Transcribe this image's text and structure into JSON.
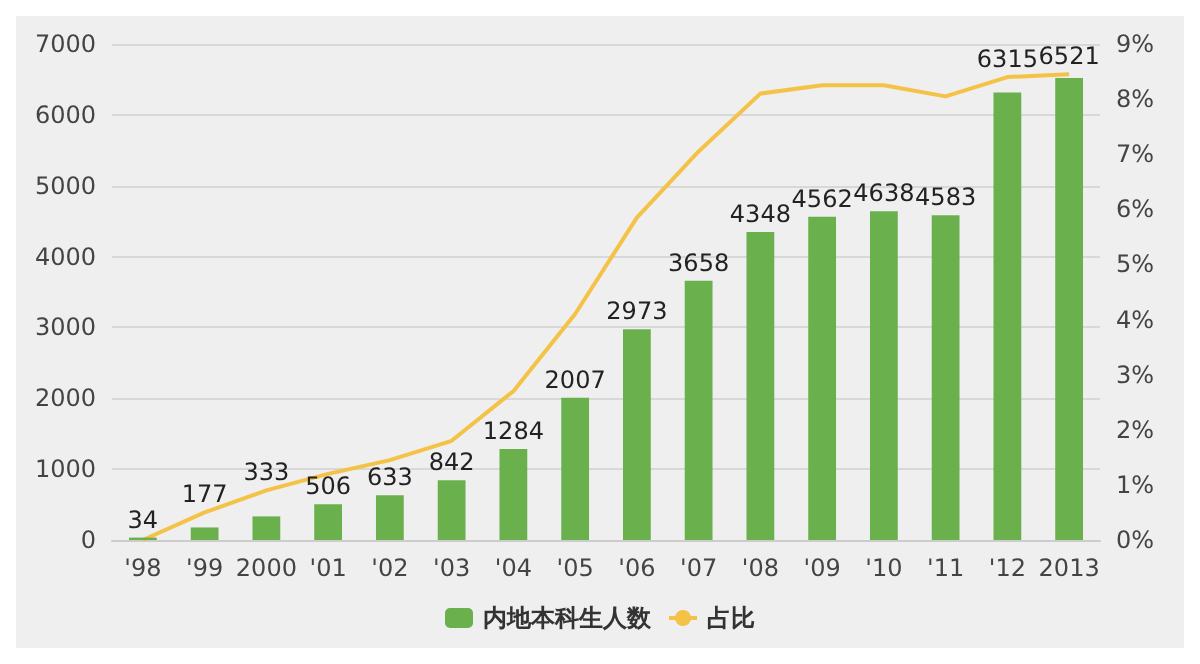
{
  "chart_data": {
    "type": "bar",
    "categories": [
      "'98",
      "'99",
      "2000",
      "'01",
      "'02",
      "'03",
      "'04",
      "'05",
      "'06",
      "'07",
      "'08",
      "'09",
      "'10",
      "'11",
      "'12",
      "2013"
    ],
    "series": [
      {
        "name": "内地本科生人数",
        "color": "#6ab04c",
        "values": [
          34,
          177,
          333,
          506,
          633,
          842,
          1284,
          2007,
          2973,
          3658,
          4348,
          4562,
          4638,
          4583,
          6315,
          6521
        ],
        "value_labels": [
          "34",
          "177",
          "333",
          "506",
          "633",
          "842",
          "1284",
          "2007",
          "2973",
          "3658",
          "4348",
          "4562",
          "4638",
          "4583",
          "6315",
          "6521"
        ]
      },
      {
        "name": "占比",
        "type": "line",
        "axis": "y2",
        "color": "#f4c247",
        "values": [
          0,
          0.5,
          0.9,
          1.2,
          1.45,
          1.8,
          2.7,
          4.1,
          5.85,
          7.05,
          8.1,
          8.25,
          8.25,
          8.05,
          8.4,
          8.45
        ]
      }
    ],
    "ylim": [
      0,
      7000
    ],
    "yticks": [
      0,
      1000,
      2000,
      3000,
      4000,
      5000,
      6000,
      7000
    ],
    "y2lim": [
      0,
      9
    ],
    "y2ticks": [
      {
        "value": 0,
        "label": "0%"
      },
      {
        "value": 1,
        "label": "1%"
      },
      {
        "value": 2,
        "label": "2%"
      },
      {
        "value": 3,
        "label": "3%"
      },
      {
        "value": 4,
        "label": "4%"
      },
      {
        "value": 5,
        "label": "5%"
      },
      {
        "value": 6,
        "label": "6%"
      },
      {
        "value": 7,
        "label": "7%"
      },
      {
        "value": 8,
        "label": "8%"
      },
      {
        "value": 9,
        "label": "9%"
      }
    ],
    "grid": "y",
    "legend": "bottom",
    "marker": "none"
  }
}
